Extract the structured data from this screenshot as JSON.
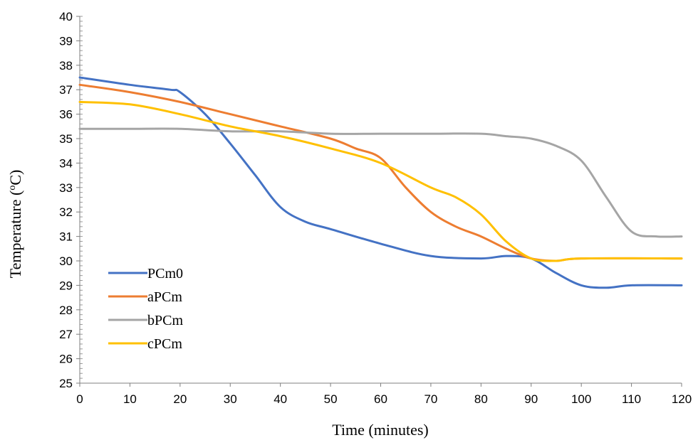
{
  "chart_data": {
    "type": "line",
    "xlabel": "Time (minutes)",
    "ylabel_main": "Temperature (",
    "ylabel_sup": "o",
    "ylabel_end": "C)",
    "xlim": [
      0,
      120
    ],
    "ylim": [
      25,
      40
    ],
    "x_ticks": [
      0,
      10,
      20,
      30,
      40,
      50,
      60,
      70,
      80,
      90,
      100,
      110,
      120
    ],
    "y_ticks": [
      25,
      26,
      27,
      28,
      29,
      30,
      31,
      32,
      33,
      34,
      35,
      36,
      37,
      38,
      39,
      40
    ],
    "grid": false,
    "legend_position": "bottom-left",
    "series": [
      {
        "name": "PCm0",
        "color": "#4472C4",
        "points": [
          [
            0,
            37.5
          ],
          [
            10,
            37.2
          ],
          [
            18,
            37.0
          ],
          [
            20,
            36.9
          ],
          [
            25,
            36.0
          ],
          [
            30,
            34.8
          ],
          [
            35,
            33.5
          ],
          [
            40,
            32.2
          ],
          [
            45,
            31.6
          ],
          [
            50,
            31.3
          ],
          [
            60,
            30.7
          ],
          [
            70,
            30.2
          ],
          [
            80,
            30.1
          ],
          [
            85,
            30.2
          ],
          [
            90,
            30.1
          ],
          [
            95,
            29.5
          ],
          [
            100,
            29.0
          ],
          [
            105,
            28.9
          ],
          [
            110,
            29.0
          ],
          [
            120,
            29.0
          ]
        ]
      },
      {
        "name": "aPCm",
        "color": "#ED7D31",
        "points": [
          [
            0,
            37.2
          ],
          [
            10,
            36.9
          ],
          [
            20,
            36.5
          ],
          [
            30,
            36.0
          ],
          [
            40,
            35.5
          ],
          [
            50,
            35.0
          ],
          [
            55,
            34.6
          ],
          [
            60,
            34.2
          ],
          [
            65,
            33.0
          ],
          [
            70,
            32.0
          ],
          [
            75,
            31.4
          ],
          [
            80,
            31.0
          ],
          [
            85,
            30.5
          ],
          [
            90,
            30.1
          ],
          [
            95,
            30.0
          ],
          [
            100,
            30.1
          ],
          [
            120,
            30.1
          ]
        ]
      },
      {
        "name": "bPCm",
        "color": "#A5A5A5",
        "points": [
          [
            0,
            35.4
          ],
          [
            10,
            35.4
          ],
          [
            20,
            35.4
          ],
          [
            30,
            35.3
          ],
          [
            40,
            35.3
          ],
          [
            50,
            35.2
          ],
          [
            60,
            35.2
          ],
          [
            70,
            35.2
          ],
          [
            80,
            35.2
          ],
          [
            85,
            35.1
          ],
          [
            90,
            35.0
          ],
          [
            95,
            34.7
          ],
          [
            100,
            34.1
          ],
          [
            105,
            32.6
          ],
          [
            110,
            31.2
          ],
          [
            115,
            31.0
          ],
          [
            120,
            31.0
          ]
        ]
      },
      {
        "name": "cPCm",
        "color": "#FFC000",
        "points": [
          [
            0,
            36.5
          ],
          [
            10,
            36.4
          ],
          [
            20,
            36.0
          ],
          [
            30,
            35.5
          ],
          [
            40,
            35.1
          ],
          [
            50,
            34.6
          ],
          [
            60,
            34.0
          ],
          [
            70,
            33.0
          ],
          [
            75,
            32.6
          ],
          [
            80,
            31.9
          ],
          [
            85,
            30.8
          ],
          [
            90,
            30.1
          ],
          [
            95,
            30.0
          ],
          [
            100,
            30.1
          ],
          [
            120,
            30.1
          ]
        ]
      }
    ]
  }
}
